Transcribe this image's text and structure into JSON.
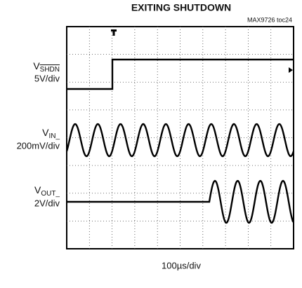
{
  "title": "EXITING SHUTDOWN",
  "tag": "MAX9726 toc24",
  "channels": [
    {
      "name": "V",
      "subscript": "SHDN",
      "scale": "5V/div"
    },
    {
      "name": "V",
      "subscript": "IN_",
      "scale": "200mV/div"
    },
    {
      "name": "V",
      "subscript": "OUT_",
      "scale": "2V/div"
    }
  ],
  "timebase": "100µs/div"
}
